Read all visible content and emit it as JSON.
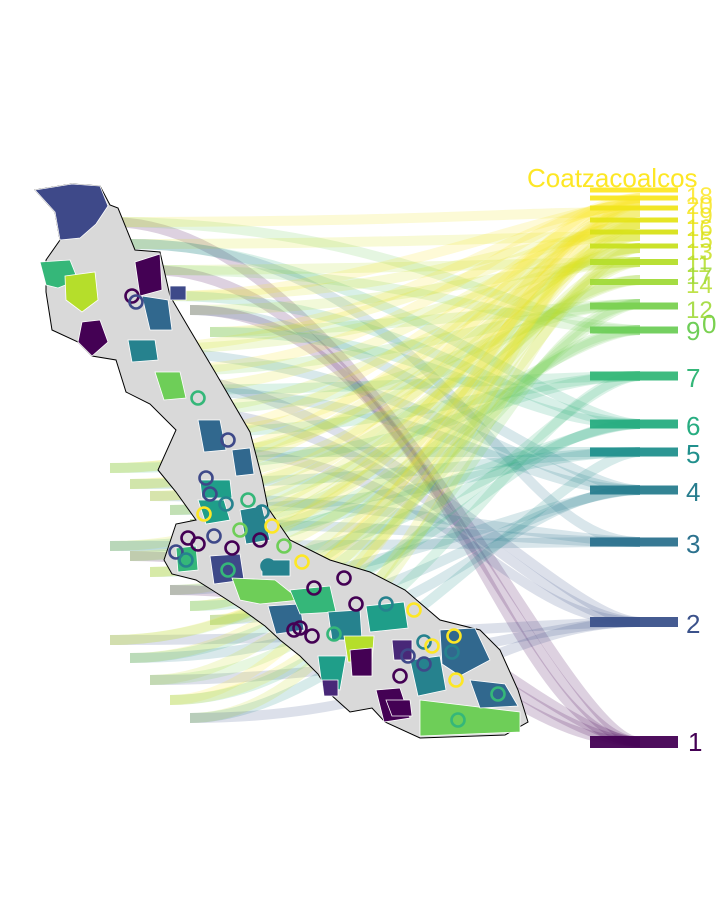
{
  "chart_data": {
    "type": "map",
    "title": "",
    "stream_direction": "left-to-right",
    "rank_labels": [
      {
        "text": "1",
        "color": "#440154"
      },
      {
        "text": "2",
        "color": "#3b528b"
      },
      {
        "text": "3",
        "color": "#2c728e"
      },
      {
        "text": "4",
        "color": "#287d8e"
      },
      {
        "text": "5",
        "color": "#21908d"
      },
      {
        "text": "6",
        "color": "#27ad81"
      },
      {
        "text": "7",
        "color": "#35b779"
      },
      {
        "text": "9",
        "color": "#6ece58"
      },
      {
        "text": "0",
        "color": "#7ad151"
      },
      {
        "text": "12",
        "color": "#a0da39"
      },
      {
        "text": "14",
        "color": "#b5de2b"
      },
      {
        "text": "Coatzacoalcos",
        "color": "#fde725"
      }
    ],
    "colorscale": "viridis",
    "basemap_color": "#d9d9d9",
    "outline_color": "#000000"
  }
}
